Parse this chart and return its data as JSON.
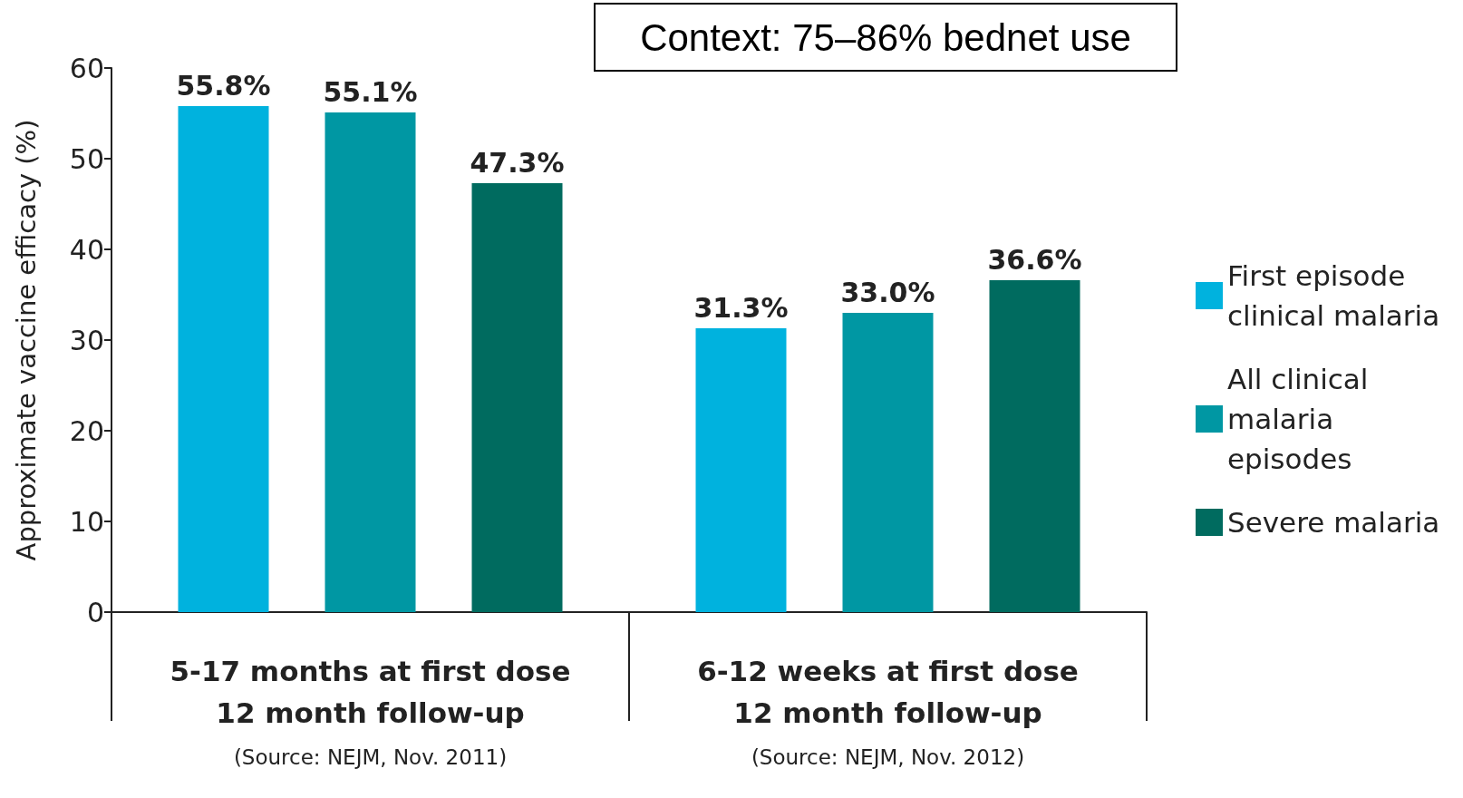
{
  "chart_data": {
    "type": "bar",
    "ylabel": "Approximate vaccine efficacy (%)",
    "categories": [
      "5-17 months at first dose\n12 month follow-up\n(Source: NEJM, Nov. 2011)",
      "6-12 weeks at first dose\n12 month follow-up\n(Source: NEJM, Nov. 2012)"
    ],
    "series": [
      {
        "name": "First episode clinical malaria",
        "color": "#00b2de",
        "values": [
          55.8,
          31.3
        ],
        "value_labels": [
          "55.8%",
          "31.3%"
        ]
      },
      {
        "name": "All clinical malaria episodes",
        "color": "#0097a3",
        "values": [
          55.1,
          33.0
        ],
        "value_labels": [
          "55.1%",
          "33.0%"
        ]
      },
      {
        "name": "Severe malaria",
        "color": "#006b5f",
        "values": [
          47.3,
          36.6
        ],
        "value_labels": [
          "47.3%",
          "36.6%"
        ]
      }
    ],
    "ylim": [
      0,
      60
    ],
    "yticks": [
      0,
      10,
      20,
      30,
      40,
      50,
      60
    ],
    "grid": false,
    "legend": "right",
    "annotations": [
      "Context: 75–86% bednet use"
    ]
  }
}
